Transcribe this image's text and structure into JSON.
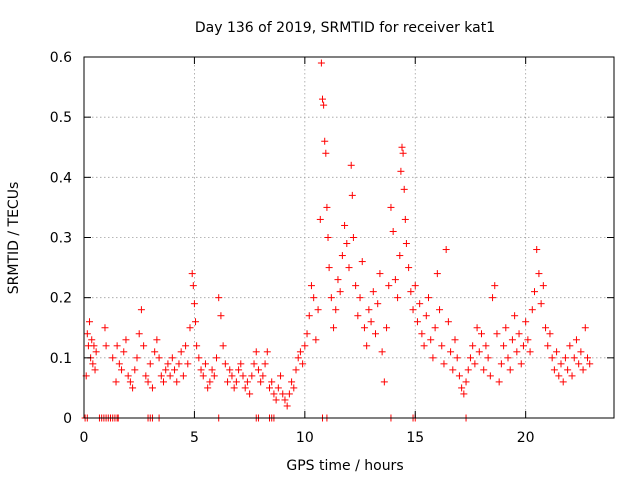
{
  "chart_data": {
    "type": "scatter",
    "title": "Day 136 of 2019, SRMTID for receiver kat1",
    "xlabel": "GPS time / hours",
    "ylabel": "SRMTID / TECUs",
    "xlim": [
      0,
      24
    ],
    "ylim": [
      0,
      0.6
    ],
    "xticks": [
      0,
      5,
      10,
      15,
      20
    ],
    "xtick_labels": [
      "0",
      "5",
      "10",
      "15",
      "20"
    ],
    "yticks": [
      0,
      0.1,
      0.2,
      0.3,
      0.4,
      0.5,
      0.6
    ],
    "ytick_labels": [
      "0",
      "0.1",
      "0.2",
      "0.3",
      "0.4",
      "0.5",
      "0.6"
    ],
    "grid": true,
    "marker": "+",
    "color": "#ff0000",
    "series": [
      {
        "name": "SRMTID",
        "points": [
          [
            0.1,
            0.07
          ],
          [
            0.15,
            0.14
          ],
          [
            0.2,
            0.12
          ],
          [
            0.25,
            0.16
          ],
          [
            0.3,
            0.1
          ],
          [
            0.35,
            0.13
          ],
          [
            0.4,
            0.09
          ],
          [
            0.45,
            0.12
          ],
          [
            0.5,
            0.08
          ],
          [
            0.55,
            0.11
          ],
          [
            0.95,
            0.15
          ],
          [
            1.0,
            0.12
          ],
          [
            1.3,
            0.1
          ],
          [
            1.45,
            0.06
          ],
          [
            1.5,
            0.12
          ],
          [
            1.6,
            0.09
          ],
          [
            1.7,
            0.08
          ],
          [
            1.8,
            0.11
          ],
          [
            1.9,
            0.13
          ],
          [
            2.0,
            0.07
          ],
          [
            2.1,
            0.06
          ],
          [
            2.2,
            0.05
          ],
          [
            2.3,
            0.08
          ],
          [
            2.4,
            0.1
          ],
          [
            2.5,
            0.14
          ],
          [
            2.6,
            0.18
          ],
          [
            2.7,
            0.12
          ],
          [
            2.8,
            0.07
          ],
          [
            2.9,
            0.06
          ],
          [
            3.0,
            0.09
          ],
          [
            3.1,
            0.05
          ],
          [
            3.2,
            0.11
          ],
          [
            3.3,
            0.13
          ],
          [
            3.4,
            0.1
          ],
          [
            3.5,
            0.07
          ],
          [
            3.6,
            0.06
          ],
          [
            3.7,
            0.08
          ],
          [
            3.8,
            0.09
          ],
          [
            3.9,
            0.07
          ],
          [
            4.0,
            0.1
          ],
          [
            4.1,
            0.08
          ],
          [
            4.2,
            0.06
          ],
          [
            4.3,
            0.09
          ],
          [
            4.4,
            0.11
          ],
          [
            4.5,
            0.07
          ],
          [
            4.6,
            0.12
          ],
          [
            4.7,
            0.09
          ],
          [
            4.8,
            0.15
          ],
          [
            4.9,
            0.24
          ],
          [
            4.95,
            0.22
          ],
          [
            5.0,
            0.19
          ],
          [
            5.05,
            0.16
          ],
          [
            5.1,
            0.12
          ],
          [
            5.2,
            0.1
          ],
          [
            5.3,
            0.08
          ],
          [
            5.4,
            0.07
          ],
          [
            5.5,
            0.09
          ],
          [
            5.6,
            0.05
          ],
          [
            5.7,
            0.06
          ],
          [
            5.8,
            0.08
          ],
          [
            5.9,
            0.07
          ],
          [
            6.0,
            0.1
          ],
          [
            6.1,
            0.2
          ],
          [
            6.2,
            0.17
          ],
          [
            6.3,
            0.12
          ],
          [
            6.4,
            0.09
          ],
          [
            6.5,
            0.06
          ],
          [
            6.6,
            0.08
          ],
          [
            6.7,
            0.07
          ],
          [
            6.8,
            0.05
          ],
          [
            6.9,
            0.06
          ],
          [
            7.0,
            0.08
          ],
          [
            7.1,
            0.09
          ],
          [
            7.2,
            0.07
          ],
          [
            7.3,
            0.05
          ],
          [
            7.4,
            0.06
          ],
          [
            7.5,
            0.04
          ],
          [
            7.6,
            0.07
          ],
          [
            7.7,
            0.09
          ],
          [
            7.8,
            0.11
          ],
          [
            7.9,
            0.08
          ],
          [
            8.0,
            0.06
          ],
          [
            8.1,
            0.07
          ],
          [
            8.2,
            0.09
          ],
          [
            8.3,
            0.11
          ],
          [
            8.4,
            0.05
          ],
          [
            8.5,
            0.06
          ],
          [
            8.6,
            0.04
          ],
          [
            8.7,
            0.03
          ],
          [
            8.8,
            0.05
          ],
          [
            8.9,
            0.07
          ],
          [
            9.0,
            0.04
          ],
          [
            9.1,
            0.03
          ],
          [
            9.2,
            0.02
          ],
          [
            9.3,
            0.04
          ],
          [
            9.4,
            0.06
          ],
          [
            9.5,
            0.05
          ],
          [
            9.6,
            0.08
          ],
          [
            9.7,
            0.1
          ],
          [
            9.8,
            0.11
          ],
          [
            9.9,
            0.09
          ],
          [
            10.0,
            0.12
          ],
          [
            10.1,
            0.14
          ],
          [
            10.2,
            0.17
          ],
          [
            10.3,
            0.22
          ],
          [
            10.4,
            0.2
          ],
          [
            10.5,
            0.13
          ],
          [
            10.6,
            0.18
          ],
          [
            10.7,
            0.33
          ],
          [
            10.75,
            0.59
          ],
          [
            10.8,
            0.53
          ],
          [
            10.85,
            0.52
          ],
          [
            10.9,
            0.46
          ],
          [
            10.95,
            0.44
          ],
          [
            11.0,
            0.35
          ],
          [
            11.05,
            0.3
          ],
          [
            11.1,
            0.25
          ],
          [
            11.2,
            0.2
          ],
          [
            11.3,
            0.15
          ],
          [
            11.4,
            0.18
          ],
          [
            11.5,
            0.23
          ],
          [
            11.6,
            0.21
          ],
          [
            11.7,
            0.27
          ],
          [
            11.8,
            0.32
          ],
          [
            11.9,
            0.29
          ],
          [
            12.0,
            0.25
          ],
          [
            12.1,
            0.42
          ],
          [
            12.15,
            0.37
          ],
          [
            12.2,
            0.3
          ],
          [
            12.3,
            0.22
          ],
          [
            12.4,
            0.17
          ],
          [
            12.5,
            0.2
          ],
          [
            12.6,
            0.26
          ],
          [
            12.7,
            0.15
          ],
          [
            12.8,
            0.12
          ],
          [
            12.9,
            0.18
          ],
          [
            13.0,
            0.16
          ],
          [
            13.1,
            0.21
          ],
          [
            13.2,
            0.14
          ],
          [
            13.3,
            0.19
          ],
          [
            13.4,
            0.24
          ],
          [
            13.5,
            0.11
          ],
          [
            13.6,
            0.06
          ],
          [
            13.7,
            0.15
          ],
          [
            13.8,
            0.22
          ],
          [
            13.9,
            0.35
          ],
          [
            14.0,
            0.31
          ],
          [
            14.1,
            0.23
          ],
          [
            14.2,
            0.2
          ],
          [
            14.3,
            0.27
          ],
          [
            14.35,
            0.41
          ],
          [
            14.4,
            0.45
          ],
          [
            14.45,
            0.44
          ],
          [
            14.5,
            0.38
          ],
          [
            14.55,
            0.33
          ],
          [
            14.6,
            0.29
          ],
          [
            14.7,
            0.25
          ],
          [
            14.8,
            0.21
          ],
          [
            14.9,
            0.18
          ],
          [
            15.0,
            0.22
          ],
          [
            15.1,
            0.16
          ],
          [
            15.2,
            0.19
          ],
          [
            15.3,
            0.14
          ],
          [
            15.4,
            0.12
          ],
          [
            15.5,
            0.17
          ],
          [
            15.6,
            0.2
          ],
          [
            15.7,
            0.13
          ],
          [
            15.8,
            0.1
          ],
          [
            15.9,
            0.15
          ],
          [
            16.0,
            0.24
          ],
          [
            16.1,
            0.18
          ],
          [
            16.2,
            0.12
          ],
          [
            16.3,
            0.09
          ],
          [
            16.4,
            0.28
          ],
          [
            16.5,
            0.16
          ],
          [
            16.6,
            0.11
          ],
          [
            16.7,
            0.08
          ],
          [
            16.8,
            0.13
          ],
          [
            16.9,
            0.1
          ],
          [
            17.0,
            0.07
          ],
          [
            17.1,
            0.05
          ],
          [
            17.2,
            0.04
          ],
          [
            17.3,
            0.06
          ],
          [
            17.4,
            0.08
          ],
          [
            17.5,
            0.1
          ],
          [
            17.6,
            0.12
          ],
          [
            17.7,
            0.09
          ],
          [
            17.8,
            0.15
          ],
          [
            17.9,
            0.11
          ],
          [
            18.0,
            0.14
          ],
          [
            18.1,
            0.08
          ],
          [
            18.2,
            0.12
          ],
          [
            18.3,
            0.1
          ],
          [
            18.4,
            0.07
          ],
          [
            18.5,
            0.2
          ],
          [
            18.6,
            0.22
          ],
          [
            18.7,
            0.14
          ],
          [
            18.8,
            0.06
          ],
          [
            18.9,
            0.09
          ],
          [
            19.0,
            0.12
          ],
          [
            19.1,
            0.15
          ],
          [
            19.2,
            0.1
          ],
          [
            19.3,
            0.08
          ],
          [
            19.4,
            0.13
          ],
          [
            19.5,
            0.17
          ],
          [
            19.6,
            0.11
          ],
          [
            19.7,
            0.14
          ],
          [
            19.8,
            0.09
          ],
          [
            19.9,
            0.12
          ],
          [
            20.0,
            0.16
          ],
          [
            20.1,
            0.13
          ],
          [
            20.2,
            0.11
          ],
          [
            20.3,
            0.18
          ],
          [
            20.4,
            0.21
          ],
          [
            20.5,
            0.28
          ],
          [
            20.6,
            0.24
          ],
          [
            20.7,
            0.19
          ],
          [
            20.8,
            0.22
          ],
          [
            20.9,
            0.15
          ],
          [
            21.0,
            0.12
          ],
          [
            21.1,
            0.14
          ],
          [
            21.2,
            0.1
          ],
          [
            21.3,
            0.08
          ],
          [
            21.4,
            0.11
          ],
          [
            21.5,
            0.07
          ],
          [
            21.6,
            0.09
          ],
          [
            21.7,
            0.06
          ],
          [
            21.8,
            0.1
          ],
          [
            21.9,
            0.08
          ],
          [
            22.0,
            0.12
          ],
          [
            22.1,
            0.07
          ],
          [
            22.2,
            0.1
          ],
          [
            22.3,
            0.13
          ],
          [
            22.4,
            0.09
          ],
          [
            22.5,
            0.11
          ],
          [
            22.6,
            0.08
          ],
          [
            22.7,
            0.15
          ],
          [
            22.8,
            0.1
          ],
          [
            22.9,
            0.09
          ]
        ],
        "zero_points_x": [
          0.05,
          0.15,
          0.7,
          0.8,
          0.9,
          1.0,
          1.1,
          1.2,
          1.3,
          1.4,
          1.5,
          1.55,
          2.9,
          3.0,
          3.1,
          3.4,
          6.1,
          7.8,
          7.9,
          8.4,
          8.5,
          8.6,
          10.8,
          11.0,
          13.9,
          14.9,
          15.0,
          17.3
        ]
      }
    ]
  }
}
